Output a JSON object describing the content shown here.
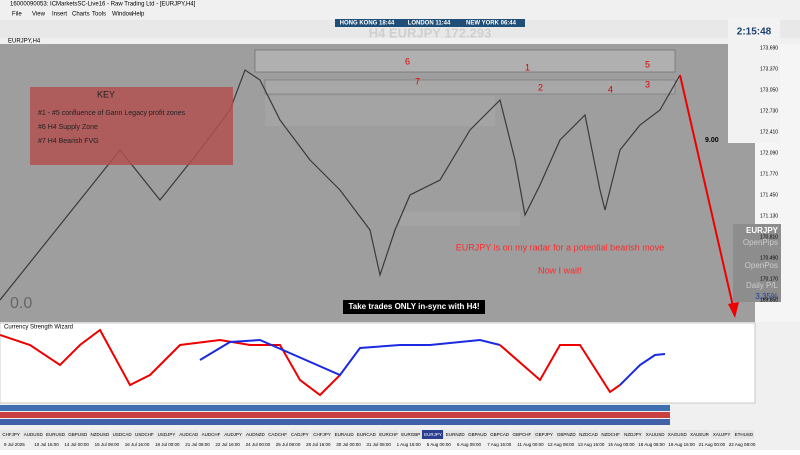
{
  "window": {
    "title": "16000090053: ICMarketsSC-Live16 - Raw Trading Ltd - [EURJPY,H4]",
    "menu": [
      "File",
      "View",
      "Insert",
      "Charts",
      "Tools",
      "Window",
      "Help"
    ]
  },
  "sessions": [
    "HONG KONG 18:44",
    "LONDON 11:44",
    "NEW YORK 06:44"
  ],
  "chart": {
    "tab": "EURJPY,H4",
    "header": "H4 EURJPY 172.293",
    "corner_value": "0.0",
    "level_label": "9.00",
    "zones": [
      "1",
      "2",
      "3",
      "4",
      "5",
      "6",
      "7"
    ],
    "price_labels": [
      "173.690",
      "173.370",
      "173.050",
      "172.730",
      "172.410",
      "172.090",
      "171.770",
      "171.450",
      "171.130",
      "170.810",
      "170.490",
      "170.170",
      "169.850"
    ]
  },
  "key": {
    "title": "KEY",
    "lines": [
      "#1 - #5 confluence of Gann Legacy profit zones",
      "#6 H4 Supply Zone",
      "#7 H4 Bearish FVG"
    ]
  },
  "annotations": {
    "radar": "EURJPY is on my radar for a potential bearish move",
    "wait": "Now I wait!",
    "sync": "Take trades ONLY in-sync with H4!"
  },
  "panel": {
    "timer": "2:15:48",
    "symbol": "EURJPY",
    "open_pips": "OpenPips",
    "open_pos": "OpenPos",
    "daily": "Daily P/L",
    "daily_value": "3.35%"
  },
  "indicator": {
    "name": "Currency Strength Wizard"
  },
  "symbol_tabs": [
    "CHFJPY",
    "AUDUSD",
    "EURUSD",
    "GBPUSD",
    "NZDUSD",
    "USDCAD",
    "USDCHF",
    "USDJPY",
    "AUDCAD",
    "AUDCHF",
    "AUDJPY",
    "AUDNZD",
    "CADCHF",
    "CADJPY",
    "CHFJPY",
    "EURAUD",
    "EURCAD",
    "EURCHF",
    "EURGBP",
    "EURJPY",
    "EURNZD",
    "GBPAUD",
    "GBPCAD",
    "GBPCHF",
    "GBPJPY",
    "GBPNZD",
    "NZDCAD",
    "NZDCHF",
    "NZDJPY",
    "XAUUSD",
    "XAGUSD",
    "XAUEUR",
    "XAUJPY",
    "ETHUSD"
  ],
  "dates": [
    "9 Jul 2025",
    "10 Jul 16:00",
    "14 Jul 00:00",
    "15 Jul 08:00",
    "16 Jul 16:00",
    "18 Jul 00:00",
    "21 Jul 08:00",
    "22 Jul 16:00",
    "24 Jul 00:00",
    "25 Jul 08:00",
    "28 Jul 16:00",
    "30 Jul 00:00",
    "31 Jul 08:00",
    "1 Aug 16:00",
    "5 Aug 00:00",
    "6 Aug 08:00",
    "7 Aug 16:00",
    "11 Aug 00:00",
    "12 Aug 08:00",
    "13 Aug 16:00",
    "15 Aug 00:00",
    "18 Aug 08:00",
    "19 Aug 16:00",
    "21 Aug 00:00",
    "22 Aug 08:00"
  ]
}
